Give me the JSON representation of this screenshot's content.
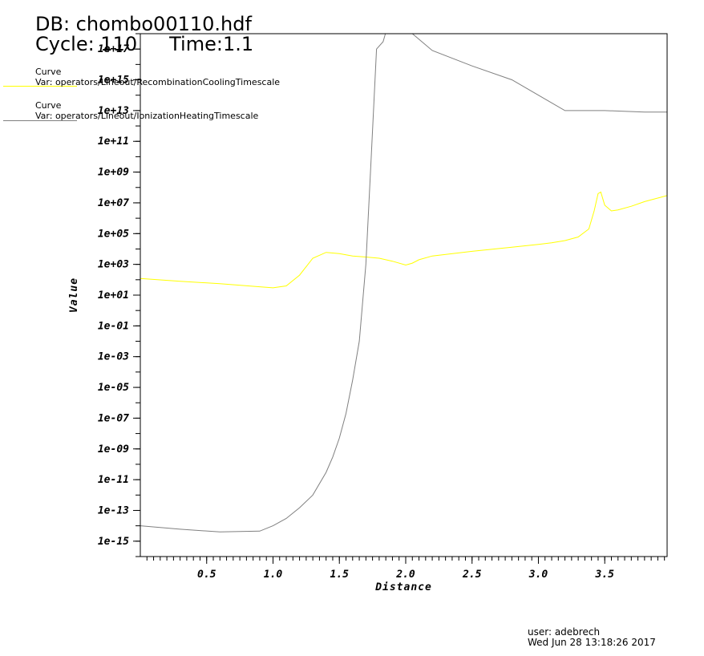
{
  "header": {
    "db": "DB: chombo00110.hdf",
    "cycle": "Cycle: 110",
    "time": "Time:1.1"
  },
  "legend": [
    {
      "title": "Curve",
      "var": "Var: operators/Lineout/RecombinationCoolingTimescale",
      "color": "#ffff00"
    },
    {
      "title": "Curve",
      "var": "Var: operators/Lineout/IonizationHeatingTimescale",
      "color": "#808080"
    }
  ],
  "footer": {
    "user": "user: adebrech",
    "date": "Wed Jun 28 13:18:26 2017"
  },
  "chart_data": {
    "type": "line",
    "xlabel": "Distance",
    "ylabel": "Value",
    "yscale": "log",
    "xlim": [
      0.0,
      3.97
    ],
    "ylim_log10": [
      -16,
      18
    ],
    "x_ticks": [
      "0.5",
      "1.0",
      "1.5",
      "2.0",
      "2.5",
      "3.0",
      "3.5"
    ],
    "x_tick_values": [
      0.5,
      1.0,
      1.5,
      2.0,
      2.5,
      3.0,
      3.5
    ],
    "y_ticks": [
      "1e-15",
      "1e-13",
      "1e-11",
      "1e-09",
      "1e-07",
      "1e-05",
      "1e-03",
      "1e-01",
      "1e+01",
      "1e+03",
      "1e+05",
      "1e+07",
      "1e+09",
      "1e+11",
      "1e+13",
      "1e+15",
      "1e+17"
    ],
    "y_tick_values": [
      1e-15,
      1e-13,
      1e-11,
      1e-09,
      1e-07,
      1e-05,
      0.001,
      0.1,
      10.0,
      1000.0,
      100000.0,
      10000000.0,
      1000000000.0,
      100000000000.0,
      10000000000000.0,
      1000000000000000.0,
      1e+17
    ],
    "grid": false,
    "series": [
      {
        "name": "RecombinationCoolingTimescale",
        "color": "#ffff00",
        "x": [
          0.0,
          0.3,
          0.6,
          0.9,
          1.0,
          1.1,
          1.2,
          1.3,
          1.4,
          1.5,
          1.6,
          1.7,
          1.8,
          1.9,
          2.0,
          2.05,
          2.1,
          2.2,
          2.5,
          2.8,
          3.0,
          3.1,
          3.2,
          3.3,
          3.38,
          3.42,
          3.45,
          3.47,
          3.5,
          3.55,
          3.6,
          3.7,
          3.8,
          3.97
        ],
        "y": [
          120,
          80,
          55,
          35,
          30,
          40,
          200,
          2500,
          6000,
          5000,
          3500,
          3000,
          2500,
          1600,
          900,
          1200,
          2000,
          3500,
          7000,
          13000,
          20000,
          25000,
          35000,
          60000,
          200000,
          3000000,
          40000000,
          50000000,
          7000000,
          3000000,
          3500000,
          6000000,
          12000000,
          30000000
        ]
      },
      {
        "name": "IonizationHeatingTimescale",
        "color": "#808080",
        "x": [
          0.0,
          0.3,
          0.6,
          0.9,
          1.0,
          1.1,
          1.2,
          1.3,
          1.4,
          1.45,
          1.5,
          1.55,
          1.6,
          1.65,
          1.7,
          1.74,
          1.78,
          1.83,
          1.87,
          1.95,
          2.05,
          2.2,
          2.5,
          2.8,
          3.0,
          3.2,
          3.3,
          3.5,
          3.8,
          3.97
        ],
        "y": [
          1e-14,
          6e-15,
          4e-15,
          4.5e-15,
          1e-14,
          3e-14,
          1.5e-13,
          1e-12,
          3e-11,
          3e-10,
          5e-09,
          2e-07,
          3e-05,
          0.01,
          1000.0,
          10000000000.0,
          1e+17,
          3e+17,
          5e+18,
          1e+19,
          1e+18,
          8e+16,
          8000000000000000.0,
          1000000000000000.0,
          100000000000000.0,
          10000000000000.0,
          10000000000000.0,
          10000000000000.0,
          8000000000000.0,
          8000000000000.0
        ]
      }
    ]
  }
}
